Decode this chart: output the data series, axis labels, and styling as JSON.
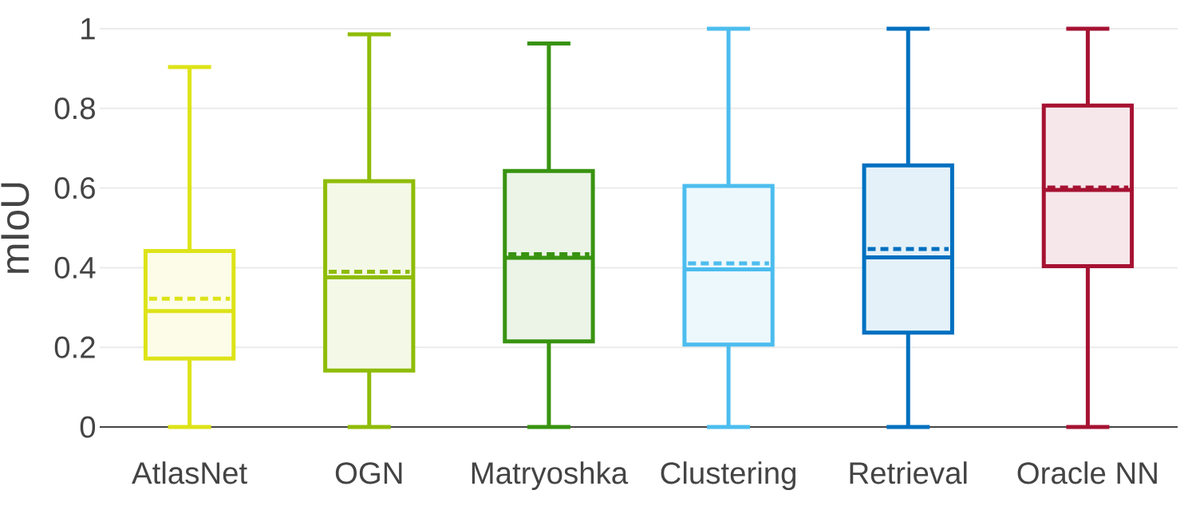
{
  "chart_data": {
    "type": "box",
    "ylabel": "mIoU",
    "categories": [
      "AtlasNet",
      "OGN",
      "Matryoshka",
      "Clustering",
      "Retrieval",
      "Oracle NN"
    ],
    "colors": [
      "#dde318",
      "#8fbc08",
      "#389310",
      "#4cbdee",
      "#0070c0",
      "#a61232"
    ],
    "boxes": [
      {
        "low": 0,
        "q1": 0.172,
        "median": 0.291,
        "q3": 0.442,
        "high": 0.904,
        "mean": 0.322
      },
      {
        "low": 0,
        "q1": 0.142,
        "median": 0.376,
        "q3": 0.617,
        "high": 0.986,
        "mean": 0.39
      },
      {
        "low": 0,
        "q1": 0.215,
        "median": 0.425,
        "q3": 0.643,
        "high": 0.963,
        "mean": 0.434
      },
      {
        "low": 0,
        "q1": 0.207,
        "median": 0.396,
        "q3": 0.605,
        "high": 1.0,
        "mean": 0.411
      },
      {
        "low": 0,
        "q1": 0.237,
        "median": 0.426,
        "q3": 0.657,
        "high": 1.0,
        "mean": 0.447
      },
      {
        "low": 0,
        "q1": 0.404,
        "median": 0.595,
        "q3": 0.807,
        "high": 1.0,
        "mean": 0.601
      }
    ],
    "ylim": [
      0,
      1
    ],
    "yticks": [
      0,
      0.2,
      0.4,
      0.6,
      0.8,
      1
    ],
    "grid": "y"
  }
}
